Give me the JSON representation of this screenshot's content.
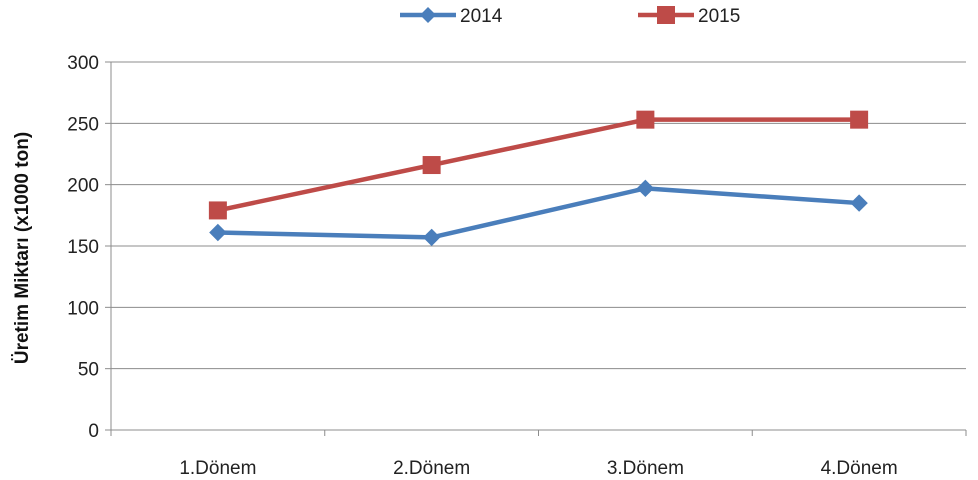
{
  "chart_data": {
    "type": "line",
    "title": "",
    "xlabel": "",
    "ylabel": "Üretim Miktarı (x1000 ton)",
    "categories": [
      "1.Dönem",
      "2.Dönem",
      "3.Dönem",
      "4.Dönem"
    ],
    "ylim": [
      0,
      300
    ],
    "yticks": [
      0,
      50,
      100,
      150,
      200,
      250,
      300
    ],
    "grid": true,
    "legend_position": "top",
    "series": [
      {
        "name": "2014",
        "values": [
          161,
          157,
          197,
          185
        ],
        "color": "#4a7ebb",
        "marker": "diamond"
      },
      {
        "name": "2015",
        "values": [
          179,
          216,
          253,
          253
        ],
        "color": "#be4b48",
        "marker": "square"
      }
    ]
  }
}
